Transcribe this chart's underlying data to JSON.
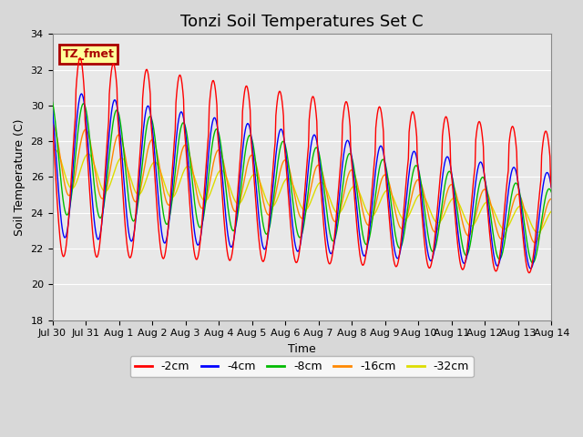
{
  "title": "Tonzi Soil Temperatures Set C",
  "xlabel": "Time",
  "ylabel": "Soil Temperature (C)",
  "ylim": [
    18,
    34
  ],
  "yticks": [
    18,
    20,
    22,
    24,
    26,
    28,
    30,
    32,
    34
  ],
  "xtick_labels": [
    "Jul 30",
    "Jul 31",
    "Aug 1",
    "Aug 2",
    "Aug 3",
    "Aug 4",
    "Aug 5",
    "Aug 6",
    "Aug 7",
    "Aug 8",
    "Aug 9",
    "Aug 10",
    "Aug 11",
    "Aug 12",
    "Aug 13",
    "Aug 14"
  ],
  "xtick_positions": [
    0,
    1,
    2,
    3,
    4,
    5,
    6,
    7,
    8,
    9,
    10,
    11,
    12,
    13,
    14,
    15
  ],
  "series_colors": [
    "#ff0000",
    "#0000ff",
    "#00bb00",
    "#ff8800",
    "#dddd00"
  ],
  "series_labels": [
    "-2cm",
    "-4cm",
    "-8cm",
    "-16cm",
    "-32cm"
  ],
  "annotation_text": "TZ_fmet",
  "annotation_bg": "#ffff99",
  "annotation_border": "#aa0000",
  "bg_color": "#e8e8e8",
  "grid_color": "#ffffff",
  "fig_bg": "#d8d8d8",
  "title_fontsize": 13,
  "label_fontsize": 9,
  "tick_fontsize": 8
}
